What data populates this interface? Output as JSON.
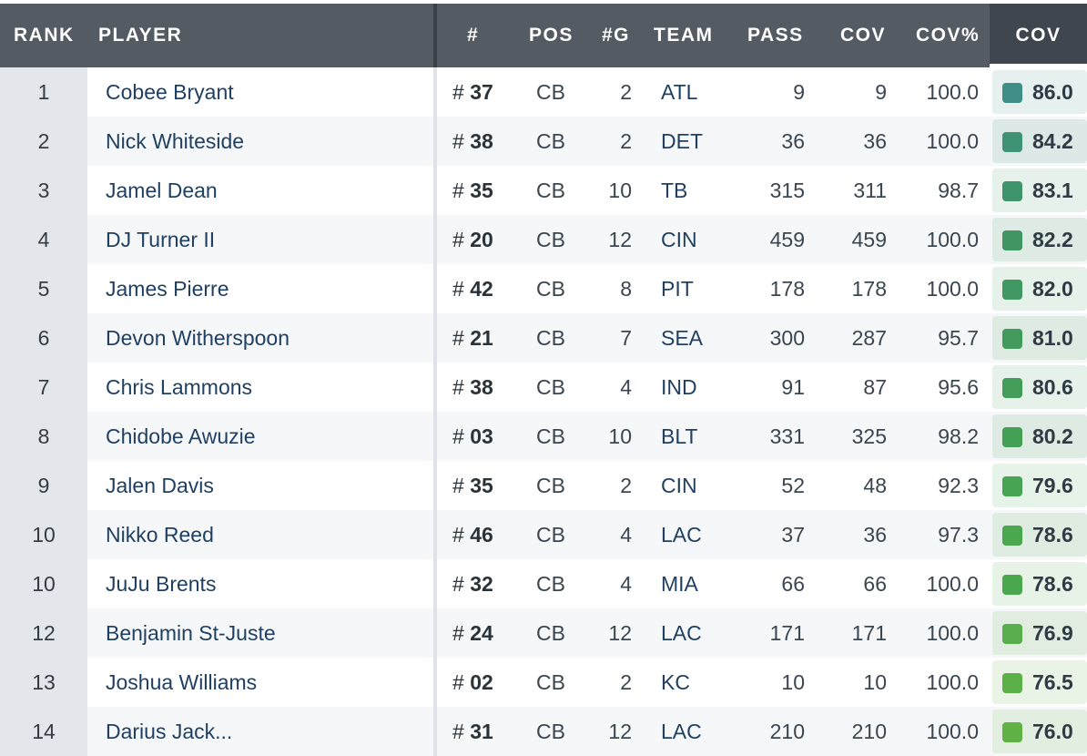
{
  "header": {
    "rank": "RANK",
    "player": "PLAYER",
    "number": "#",
    "pos": "POS",
    "games": "#G",
    "team": "TEAM",
    "pass": "PASS",
    "cov": "COV",
    "cov_pct": "COV%",
    "grade": "COV"
  },
  "rows": [
    {
      "rank": "1",
      "player": "Cobee Bryant",
      "num": "37",
      "pos": "CB",
      "games": "2",
      "team": "ATL",
      "pass": "9",
      "cov": "9",
      "cov_pct": "100.0",
      "grade": "86.0",
      "color": "#3f8f86"
    },
    {
      "rank": "2",
      "player": "Nick Whiteside",
      "num": "38",
      "pos": "CB",
      "games": "2",
      "team": "DET",
      "pass": "36",
      "cov": "36",
      "cov_pct": "100.0",
      "grade": "84.2",
      "color": "#3f9274"
    },
    {
      "rank": "3",
      "player": "Jamel Dean",
      "num": "35",
      "pos": "CB",
      "games": "10",
      "team": "TB",
      "pass": "315",
      "cov": "311",
      "cov_pct": "98.7",
      "grade": "83.1",
      "color": "#40946c"
    },
    {
      "rank": "4",
      "player": "DJ Turner II",
      "num": "20",
      "pos": "CB",
      "games": "12",
      "team": "CIN",
      "pass": "459",
      "cov": "459",
      "cov_pct": "100.0",
      "grade": "82.2",
      "color": "#419663"
    },
    {
      "rank": "5",
      "player": "James Pierre",
      "num": "42",
      "pos": "CB",
      "games": "8",
      "team": "PIT",
      "pass": "178",
      "cov": "178",
      "cov_pct": "100.0",
      "grade": "82.0",
      "color": "#419862"
    },
    {
      "rank": "6",
      "player": "Devon Witherspoon",
      "num": "21",
      "pos": "CB",
      "games": "7",
      "team": "SEA",
      "pass": "300",
      "cov": "287",
      "cov_pct": "95.7",
      "grade": "81.0",
      "color": "#429b5c"
    },
    {
      "rank": "7",
      "player": "Chris Lammons",
      "num": "38",
      "pos": "CB",
      "games": "4",
      "team": "IND",
      "pass": "91",
      "cov": "87",
      "cov_pct": "95.6",
      "grade": "80.6",
      "color": "#439d58"
    },
    {
      "rank": "8",
      "player": "Chidobe Awuzie",
      "num": "03",
      "pos": "CB",
      "games": "10",
      "team": "BLT",
      "pass": "331",
      "cov": "325",
      "cov_pct": "98.2",
      "grade": "80.2",
      "color": "#44a055"
    },
    {
      "rank": "9",
      "player": "Jalen Davis",
      "num": "35",
      "pos": "CB",
      "games": "2",
      "team": "CIN",
      "pass": "52",
      "cov": "48",
      "cov_pct": "92.3",
      "grade": "79.6",
      "color": "#47a452"
    },
    {
      "rank": "10",
      "player": "Nikko Reed",
      "num": "46",
      "pos": "CB",
      "games": "4",
      "team": "LAC",
      "pass": "37",
      "cov": "36",
      "cov_pct": "97.3",
      "grade": "78.6",
      "color": "#4ba84e"
    },
    {
      "rank": "10",
      "player": "JuJu Brents",
      "num": "32",
      "pos": "CB",
      "games": "4",
      "team": "MIA",
      "pass": "66",
      "cov": "66",
      "cov_pct": "100.0",
      "grade": "78.6",
      "color": "#4ba84e"
    },
    {
      "rank": "12",
      "player": "Benjamin St-Juste",
      "num": "24",
      "pos": "CB",
      "games": "12",
      "team": "LAC",
      "pass": "171",
      "cov": "171",
      "cov_pct": "100.0",
      "grade": "76.9",
      "color": "#58ae4a"
    },
    {
      "rank": "13",
      "player": "Joshua Williams",
      "num": "02",
      "pos": "CB",
      "games": "2",
      "team": "KC",
      "pass": "10",
      "cov": "10",
      "cov_pct": "100.0",
      "grade": "76.5",
      "color": "#5cb048"
    },
    {
      "rank": "14",
      "player": "Darius Jack...",
      "num": "31",
      "pos": "CB",
      "games": "12",
      "team": "LAC",
      "pass": "210",
      "cov": "210",
      "cov_pct": "100.0",
      "grade": "76.0",
      "color": "#60b246"
    }
  ],
  "colors": {
    "header_bg": "#545b63",
    "sorted_header_bg": "#3f464d",
    "rank_col_bg": "#e3e6ea",
    "row_alt_bg": "#f6f7f8",
    "link_text": "#1f4063"
  }
}
